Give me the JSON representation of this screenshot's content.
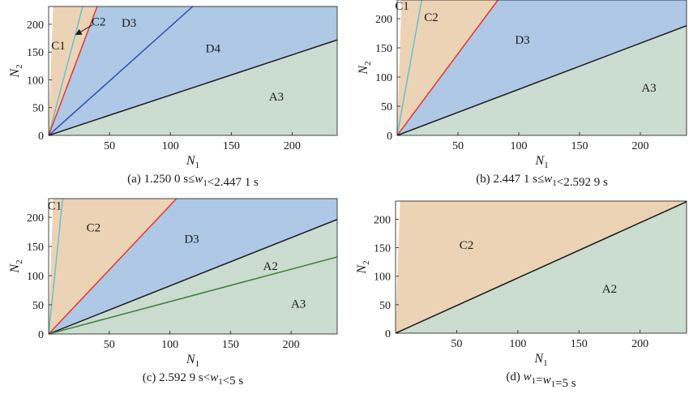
{
  "chart_data": [
    {
      "type": "area",
      "caption": "(a) 1.250 0 s≤w1<2.447 1 s",
      "xlabel": "N1",
      "ylabel": "N2",
      "xlim": [
        0,
        237
      ],
      "ylim": [
        0,
        232
      ],
      "xticks": [
        50,
        100,
        150,
        200
      ],
      "yticks": [
        0,
        50,
        100,
        150,
        200
      ],
      "regions": [
        {
          "label": "C1",
          "fill": "#edd3b5",
          "from_slope": 60,
          "to_slope": 8.3
        },
        {
          "label": "C2",
          "fill": "#edd3b5",
          "from_slope": 8.3,
          "to_slope": 5.82
        },
        {
          "label": "D3",
          "fill": "#aec8e6",
          "from_slope": 5.82,
          "to_slope": 1.96
        },
        {
          "label": "D4",
          "fill": "#aec8e6",
          "from_slope": 1.96,
          "to_slope": 0.725
        },
        {
          "label": "A3",
          "fill": "#cbdcd0",
          "from_slope": 0.725,
          "to_slope": 0
        }
      ],
      "boundaries": [
        {
          "slope": 8.3,
          "color": "#62c3cf"
        },
        {
          "slope": 5.82,
          "color": "#e23a2e"
        },
        {
          "slope": 1.96,
          "color": "#2c4fb4"
        },
        {
          "slope": 0.725,
          "color": "#1a1a1a"
        }
      ],
      "labels": [
        {
          "text": "C1",
          "x": 8,
          "y": 162
        },
        {
          "text": "C2",
          "x": 41,
          "y": 205
        },
        {
          "text": "D3",
          "x": 66,
          "y": 203
        },
        {
          "text": "D4",
          "x": 135,
          "y": 157
        },
        {
          "text": "A3",
          "x": 187,
          "y": 70
        }
      ],
      "arrow": {
        "from": [
          36,
          199
        ],
        "to": [
          23,
          182
        ]
      }
    },
    {
      "type": "area",
      "caption": "(b) 2.447 1 s≤w1<2.592 9 s",
      "xlabel": "N1",
      "ylabel": "N2",
      "xlim": [
        0,
        238
      ],
      "ylim": [
        0,
        232
      ],
      "xticks": [
        50,
        100,
        150,
        200
      ],
      "yticks": [
        0,
        50,
        100,
        150,
        200
      ],
      "regions": [
        {
          "label": "C1",
          "fill": "#edd3b5",
          "from_slope": 60,
          "to_slope": 11.5
        },
        {
          "label": "C2",
          "fill": "#edd3b5",
          "from_slope": 11.5,
          "to_slope": 2.8
        },
        {
          "label": "D3",
          "fill": "#aec8e6",
          "from_slope": 2.8,
          "to_slope": 0.79
        },
        {
          "label": "A3",
          "fill": "#cbdcd0",
          "from_slope": 0.79,
          "to_slope": 0
        }
      ],
      "boundaries": [
        {
          "slope": 11.5,
          "color": "#62c3cf"
        },
        {
          "slope": 2.8,
          "color": "#e23a2e"
        },
        {
          "slope": 0.79,
          "color": "#1a1a1a"
        }
      ],
      "labels": [
        {
          "text": "C1",
          "x": 4,
          "y": 222
        },
        {
          "text": "C2",
          "x": 28,
          "y": 203
        },
        {
          "text": "D3",
          "x": 103,
          "y": 164
        },
        {
          "text": "A3",
          "x": 207,
          "y": 82
        }
      ]
    },
    {
      "type": "area",
      "caption": "(c) 2.592 9 s<w1<5 s",
      "xlabel": "N1",
      "ylabel": "N2",
      "xlim": [
        0,
        238
      ],
      "ylim": [
        0,
        232
      ],
      "xticks": [
        50,
        100,
        150,
        200
      ],
      "yticks": [
        0,
        50,
        100,
        150,
        200
      ],
      "regions": [
        {
          "label": "C1",
          "fill": "#edd3b5",
          "from_slope": 60,
          "to_slope": 20
        },
        {
          "label": "C2",
          "fill": "#edd3b5",
          "from_slope": 20,
          "to_slope": 2.2
        },
        {
          "label": "D3",
          "fill": "#aec8e6",
          "from_slope": 2.2,
          "to_slope": 0.825
        },
        {
          "label": "A2",
          "fill": "#cbdcd0",
          "from_slope": 0.825,
          "to_slope": 0.555
        },
        {
          "label": "A3",
          "fill": "#cbdcd0",
          "from_slope": 0.555,
          "to_slope": 0
        }
      ],
      "boundaries": [
        {
          "slope": 20,
          "color": "#62c3cf"
        },
        {
          "slope": 2.2,
          "color": "#e23a2e"
        },
        {
          "slope": 0.825,
          "color": "#1a1a1a"
        },
        {
          "slope": 0.555,
          "color": "#3d7f3a"
        }
      ],
      "labels": [
        {
          "text": "C1",
          "x": 5,
          "y": 220
        },
        {
          "text": "C2",
          "x": 37,
          "y": 183
        },
        {
          "text": "D3",
          "x": 118,
          "y": 163
        },
        {
          "text": "A2",
          "x": 183,
          "y": 117
        },
        {
          "text": "A3",
          "x": 206,
          "y": 52
        }
      ]
    },
    {
      "type": "area",
      "caption": "(d) w1=w1=5 s",
      "xlabel": "N1",
      "ylabel": "N2",
      "xlim": [
        0,
        238
      ],
      "ylim": [
        0,
        232
      ],
      "xticks": [
        50,
        100,
        150,
        200
      ],
      "yticks": [
        0,
        50,
        100,
        150,
        200
      ],
      "regions": [
        {
          "label": "C2",
          "fill": "#edd3b5",
          "from_slope": 60,
          "to_slope": 0.97
        },
        {
          "label": "A2",
          "fill": "#cbdcd0",
          "from_slope": 0.97,
          "to_slope": 0
        }
      ],
      "boundaries": [
        {
          "slope": 0.97,
          "color": "#1a1a1a"
        }
      ],
      "labels": [
        {
          "text": "C2",
          "x": 58,
          "y": 155
        },
        {
          "text": "A2",
          "x": 175,
          "y": 78
        }
      ]
    }
  ]
}
